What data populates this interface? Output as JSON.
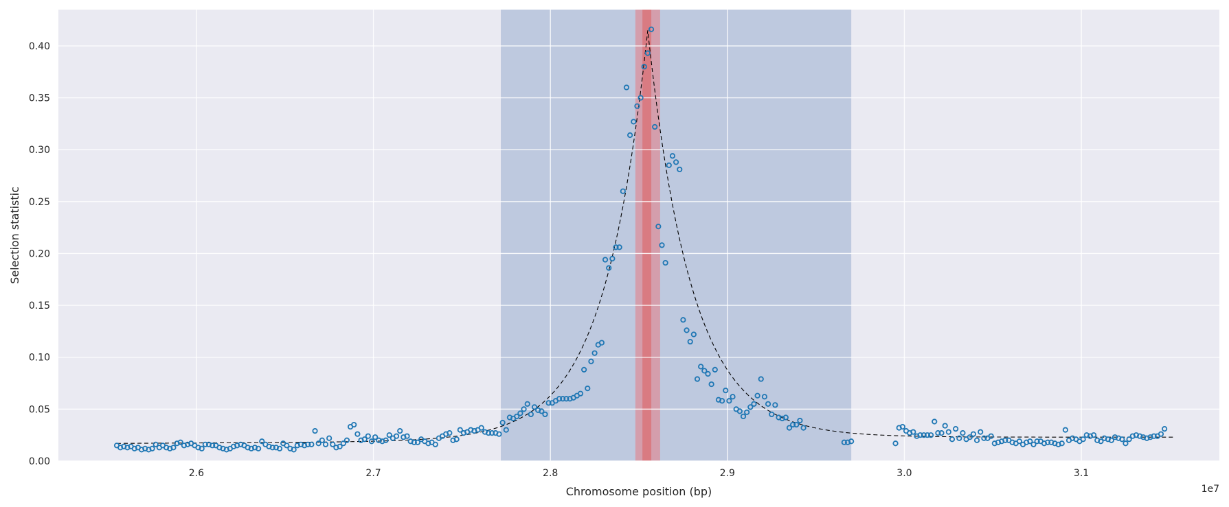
{
  "chart_data": {
    "type": "scatter",
    "xlabel": "Chromosome position (bp)",
    "ylabel": "Selection statistic",
    "x_offset_label": "1e7",
    "x_unit_multiplier": 10000000,
    "xlim": [
      25220000,
      31780000
    ],
    "ylim": [
      0,
      0.435
    ],
    "x_ticks": [
      26000000,
      27000000,
      28000000,
      29000000,
      30000000,
      31000000
    ],
    "x_tick_labels": [
      "2.6",
      "2.7",
      "2.8",
      "2.9",
      "3.0",
      "3.1"
    ],
    "y_ticks": [
      0,
      0.05,
      0.1,
      0.15,
      0.2,
      0.25,
      0.3,
      0.35,
      0.4
    ],
    "y_tick_labels": [
      "0.00",
      "0.05",
      "0.10",
      "0.15",
      "0.20",
      "0.25",
      "0.30",
      "0.35",
      "0.40"
    ],
    "grid": true,
    "background_color": "#eaeaf2",
    "marker_color": "#1f77b4",
    "fit_color": "#000000",
    "shaded_regions": [
      {
        "x0": 27720000,
        "x1": 29700000,
        "color": "#4c72b0",
        "opacity": 0.28
      },
      {
        "x0": 28480000,
        "x1": 28620000,
        "color": "#ff4d4d",
        "opacity": 0.35
      },
      {
        "x0": 28520000,
        "x1": 28570000,
        "color": "#e05050",
        "opacity": 0.45
      }
    ],
    "fit_curve": {
      "peak_x": 28550000,
      "peak_y": 0.415,
      "left_baseline": 0.017,
      "right_baseline": 0.023,
      "left_baseline_slope": 3.6e-09,
      "left_decay": 250000,
      "right_decay": 250000,
      "x_start": 25550000,
      "x_end": 31530000
    },
    "points": [
      [
        25550000,
        0.015
      ],
      [
        25570000,
        0.013
      ],
      [
        25590000,
        0.014
      ],
      [
        25610000,
        0.013
      ],
      [
        25630000,
        0.014
      ],
      [
        25650000,
        0.012
      ],
      [
        25670000,
        0.013
      ],
      [
        25690000,
        0.011
      ],
      [
        25710000,
        0.012
      ],
      [
        25730000,
        0.011
      ],
      [
        25750000,
        0.012
      ],
      [
        25770000,
        0.016
      ],
      [
        25790000,
        0.013
      ],
      [
        25810000,
        0.015
      ],
      [
        25830000,
        0.013
      ],
      [
        25850000,
        0.012
      ],
      [
        25870000,
        0.013
      ],
      [
        25890000,
        0.017
      ],
      [
        25910000,
        0.018
      ],
      [
        25930000,
        0.015
      ],
      [
        25950000,
        0.016
      ],
      [
        25970000,
        0.017
      ],
      [
        25990000,
        0.015
      ],
      [
        26010000,
        0.013
      ],
      [
        26030000,
        0.012
      ],
      [
        26050000,
        0.016
      ],
      [
        26070000,
        0.016
      ],
      [
        26090000,
        0.015
      ],
      [
        26110000,
        0.015
      ],
      [
        26130000,
        0.013
      ],
      [
        26150000,
        0.012
      ],
      [
        26170000,
        0.011
      ],
      [
        26190000,
        0.012
      ],
      [
        26210000,
        0.014
      ],
      [
        26230000,
        0.015
      ],
      [
        26250000,
        0.016
      ],
      [
        26270000,
        0.015
      ],
      [
        26290000,
        0.013
      ],
      [
        26310000,
        0.012
      ],
      [
        26330000,
        0.013
      ],
      [
        26350000,
        0.012
      ],
      [
        26370000,
        0.019
      ],
      [
        26390000,
        0.016
      ],
      [
        26410000,
        0.014
      ],
      [
        26430000,
        0.013
      ],
      [
        26450000,
        0.013
      ],
      [
        26470000,
        0.012
      ],
      [
        26490000,
        0.017
      ],
      [
        26510000,
        0.015
      ],
      [
        26530000,
        0.012
      ],
      [
        26550000,
        0.011
      ],
      [
        26570000,
        0.015
      ],
      [
        26590000,
        0.016
      ],
      [
        26610000,
        0.015
      ],
      [
        26630000,
        0.016
      ],
      [
        26650000,
        0.016
      ],
      [
        26670000,
        0.029
      ],
      [
        26690000,
        0.017
      ],
      [
        26710000,
        0.02
      ],
      [
        26730000,
        0.016
      ],
      [
        26750000,
        0.022
      ],
      [
        26770000,
        0.016
      ],
      [
        26790000,
        0.013
      ],
      [
        26810000,
        0.014
      ],
      [
        26830000,
        0.017
      ],
      [
        26850000,
        0.02
      ],
      [
        26870000,
        0.033
      ],
      [
        26890000,
        0.035
      ],
      [
        26910000,
        0.026
      ],
      [
        26930000,
        0.02
      ],
      [
        26950000,
        0.021
      ],
      [
        26970000,
        0.024
      ],
      [
        26990000,
        0.019
      ],
      [
        27010000,
        0.023
      ],
      [
        27030000,
        0.02
      ],
      [
        27050000,
        0.019
      ],
      [
        27070000,
        0.02
      ],
      [
        27090000,
        0.025
      ],
      [
        27110000,
        0.022
      ],
      [
        27130000,
        0.024
      ],
      [
        27150000,
        0.029
      ],
      [
        27170000,
        0.023
      ],
      [
        27190000,
        0.024
      ],
      [
        27210000,
        0.019
      ],
      [
        27230000,
        0.018
      ],
      [
        27250000,
        0.018
      ],
      [
        27270000,
        0.021
      ],
      [
        27290000,
        0.019
      ],
      [
        27310000,
        0.017
      ],
      [
        27330000,
        0.018
      ],
      [
        27350000,
        0.016
      ],
      [
        27370000,
        0.022
      ],
      [
        27390000,
        0.024
      ],
      [
        27410000,
        0.026
      ],
      [
        27430000,
        0.027
      ],
      [
        27450000,
        0.02
      ],
      [
        27470000,
        0.021
      ],
      [
        27490000,
        0.03
      ],
      [
        27510000,
        0.027
      ],
      [
        27530000,
        0.028
      ],
      [
        27550000,
        0.03
      ],
      [
        27570000,
        0.029
      ],
      [
        27590000,
        0.03
      ],
      [
        27610000,
        0.032
      ],
      [
        27630000,
        0.028
      ],
      [
        27650000,
        0.027
      ],
      [
        27670000,
        0.027
      ],
      [
        27690000,
        0.027
      ],
      [
        27710000,
        0.026
      ],
      [
        27730000,
        0.037
      ],
      [
        27750000,
        0.03
      ],
      [
        27770000,
        0.042
      ],
      [
        27790000,
        0.041
      ],
      [
        27810000,
        0.043
      ],
      [
        27830000,
        0.046
      ],
      [
        27850000,
        0.05
      ],
      [
        27870000,
        0.055
      ],
      [
        27890000,
        0.045
      ],
      [
        27910000,
        0.052
      ],
      [
        27930000,
        0.049
      ],
      [
        27950000,
        0.048
      ],
      [
        27970000,
        0.045
      ],
      [
        27990000,
        0.056
      ],
      [
        28010000,
        0.056
      ],
      [
        28030000,
        0.058
      ],
      [
        28050000,
        0.06
      ],
      [
        28070000,
        0.06
      ],
      [
        28090000,
        0.06
      ],
      [
        28110000,
        0.06
      ],
      [
        28130000,
        0.061
      ],
      [
        28150000,
        0.063
      ],
      [
        28170000,
        0.065
      ],
      [
        28190000,
        0.088
      ],
      [
        28210000,
        0.07
      ],
      [
        28230000,
        0.096
      ],
      [
        28250000,
        0.104
      ],
      [
        28270000,
        0.112
      ],
      [
        28290000,
        0.114
      ],
      [
        28310000,
        0.194
      ],
      [
        28330000,
        0.186
      ],
      [
        28350000,
        0.195
      ],
      [
        28370000,
        0.206
      ],
      [
        28390000,
        0.206
      ],
      [
        28410000,
        0.26
      ],
      [
        28430000,
        0.36
      ],
      [
        28450000,
        0.314
      ],
      [
        28470000,
        0.327
      ],
      [
        28490000,
        0.342
      ],
      [
        28510000,
        0.35
      ],
      [
        28530000,
        0.38
      ],
      [
        28550000,
        0.393
      ],
      [
        28570000,
        0.416
      ],
      [
        28590000,
        0.322
      ],
      [
        28610000,
        0.226
      ],
      [
        28630000,
        0.208
      ],
      [
        28650000,
        0.191
      ],
      [
        28670000,
        0.285
      ],
      [
        28690000,
        0.294
      ],
      [
        28710000,
        0.288
      ],
      [
        28730000,
        0.281
      ],
      [
        28750000,
        0.136
      ],
      [
        28770000,
        0.126
      ],
      [
        28790000,
        0.115
      ],
      [
        28810000,
        0.122
      ],
      [
        28830000,
        0.079
      ],
      [
        28850000,
        0.091
      ],
      [
        28870000,
        0.087
      ],
      [
        28890000,
        0.084
      ],
      [
        28910000,
        0.074
      ],
      [
        28930000,
        0.088
      ],
      [
        28950000,
        0.059
      ],
      [
        28970000,
        0.058
      ],
      [
        28990000,
        0.068
      ],
      [
        29010000,
        0.058
      ],
      [
        29030000,
        0.062
      ],
      [
        29050000,
        0.05
      ],
      [
        29070000,
        0.048
      ],
      [
        29090000,
        0.043
      ],
      [
        29110000,
        0.047
      ],
      [
        29130000,
        0.052
      ],
      [
        29150000,
        0.055
      ],
      [
        29170000,
        0.063
      ],
      [
        29190000,
        0.079
      ],
      [
        29210000,
        0.062
      ],
      [
        29230000,
        0.055
      ],
      [
        29250000,
        0.045
      ],
      [
        29270000,
        0.054
      ],
      [
        29290000,
        0.042
      ],
      [
        29310000,
        0.041
      ],
      [
        29330000,
        0.042
      ],
      [
        29350000,
        0.032
      ],
      [
        29370000,
        0.035
      ],
      [
        29390000,
        0.035
      ],
      [
        29410000,
        0.039
      ],
      [
        29430000,
        0.032
      ],
      [
        29660000,
        0.018
      ],
      [
        29680000,
        0.018
      ],
      [
        29700000,
        0.019
      ],
      [
        29950000,
        0.017
      ],
      [
        29970000,
        0.032
      ],
      [
        29990000,
        0.033
      ],
      [
        30010000,
        0.029
      ],
      [
        30030000,
        0.027
      ],
      [
        30050000,
        0.028
      ],
      [
        30070000,
        0.024
      ],
      [
        30090000,
        0.025
      ],
      [
        30110000,
        0.025
      ],
      [
        30130000,
        0.025
      ],
      [
        30150000,
        0.025
      ],
      [
        30170000,
        0.038
      ],
      [
        30190000,
        0.027
      ],
      [
        30210000,
        0.027
      ],
      [
        30230000,
        0.034
      ],
      [
        30250000,
        0.028
      ],
      [
        30270000,
        0.021
      ],
      [
        30290000,
        0.031
      ],
      [
        30310000,
        0.022
      ],
      [
        30330000,
        0.027
      ],
      [
        30350000,
        0.021
      ],
      [
        30370000,
        0.023
      ],
      [
        30390000,
        0.026
      ],
      [
        30410000,
        0.02
      ],
      [
        30430000,
        0.028
      ],
      [
        30450000,
        0.022
      ],
      [
        30470000,
        0.022
      ],
      [
        30490000,
        0.024
      ],
      [
        30510000,
        0.017
      ],
      [
        30530000,
        0.018
      ],
      [
        30550000,
        0.019
      ],
      [
        30570000,
        0.02
      ],
      [
        30590000,
        0.02
      ],
      [
        30610000,
        0.018
      ],
      [
        30630000,
        0.017
      ],
      [
        30650000,
        0.019
      ],
      [
        30670000,
        0.016
      ],
      [
        30690000,
        0.018
      ],
      [
        30710000,
        0.019
      ],
      [
        30730000,
        0.016
      ],
      [
        30750000,
        0.019
      ],
      [
        30770000,
        0.019
      ],
      [
        30790000,
        0.017
      ],
      [
        30810000,
        0.018
      ],
      [
        30830000,
        0.018
      ],
      [
        30850000,
        0.017
      ],
      [
        30870000,
        0.016
      ],
      [
        30890000,
        0.017
      ],
      [
        30910000,
        0.03
      ],
      [
        30930000,
        0.02
      ],
      [
        30950000,
        0.022
      ],
      [
        30970000,
        0.021
      ],
      [
        30990000,
        0.019
      ],
      [
        31010000,
        0.021
      ],
      [
        31030000,
        0.025
      ],
      [
        31050000,
        0.024
      ],
      [
        31070000,
        0.025
      ],
      [
        31090000,
        0.02
      ],
      [
        31110000,
        0.019
      ],
      [
        31130000,
        0.022
      ],
      [
        31150000,
        0.021
      ],
      [
        31170000,
        0.02
      ],
      [
        31190000,
        0.023
      ],
      [
        31210000,
        0.022
      ],
      [
        31230000,
        0.021
      ],
      [
        31250000,
        0.017
      ],
      [
        31270000,
        0.021
      ],
      [
        31290000,
        0.024
      ],
      [
        31310000,
        0.025
      ],
      [
        31330000,
        0.024
      ],
      [
        31350000,
        0.023
      ],
      [
        31370000,
        0.022
      ],
      [
        31390000,
        0.023
      ],
      [
        31410000,
        0.024
      ],
      [
        31430000,
        0.024
      ],
      [
        31450000,
        0.026
      ],
      [
        31470000,
        0.031
      ]
    ]
  }
}
